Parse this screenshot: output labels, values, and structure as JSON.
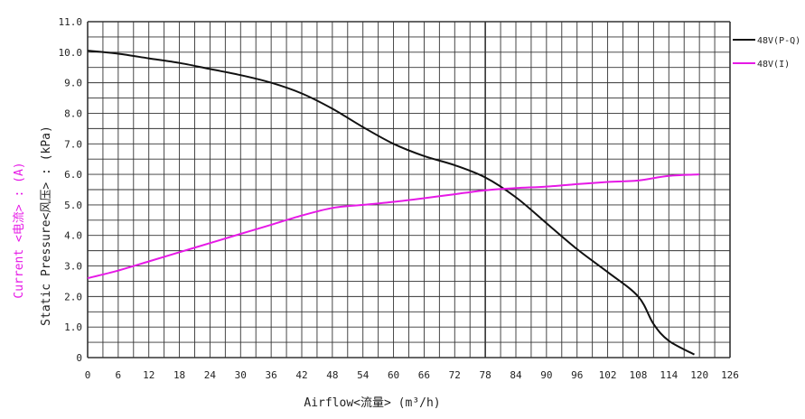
{
  "chart_data": {
    "type": "line",
    "xlabel": "Airflow<流量> (m³/h)",
    "ylabel_pressure": "Static Pressure<风压> : (kPa)",
    "ylabel_current": "Current  <电流> : (A)",
    "xlim": [
      0,
      126
    ],
    "ylim": [
      0,
      11
    ],
    "x_ticks": [
      "0",
      "6",
      "12",
      "18",
      "24",
      "30",
      "36",
      "42",
      "48",
      "54",
      "60",
      "66",
      "72",
      "78",
      "84",
      "90",
      "96",
      "102",
      "108",
      "114",
      "120",
      "126"
    ],
    "y_ticks": [
      "0",
      "1.0",
      "2.0",
      "3.0",
      "4.0",
      "5.0",
      "6.0",
      "7.0",
      "8.0",
      "9.0",
      "10.0",
      "11.0"
    ],
    "grid": true,
    "legend_position": "right",
    "series": [
      {
        "name": "48V(P-Q)",
        "color": "#111111",
        "points": [
          [
            0,
            10.05
          ],
          [
            6,
            9.95
          ],
          [
            12,
            9.8
          ],
          [
            18,
            9.65
          ],
          [
            24,
            9.45
          ],
          [
            30,
            9.25
          ],
          [
            36,
            9.0
          ],
          [
            42,
            8.65
          ],
          [
            48,
            8.15
          ],
          [
            54,
            7.55
          ],
          [
            60,
            7.0
          ],
          [
            66,
            6.6
          ],
          [
            72,
            6.3
          ],
          [
            78,
            5.9
          ],
          [
            84,
            5.25
          ],
          [
            90,
            4.4
          ],
          [
            96,
            3.55
          ],
          [
            102,
            2.8
          ],
          [
            108,
            2.0
          ],
          [
            111,
            1.1
          ],
          [
            114,
            0.55
          ],
          [
            119,
            0.1
          ]
        ]
      },
      {
        "name": "48V(I)",
        "color": "#e619e6",
        "points": [
          [
            0,
            2.6
          ],
          [
            6,
            2.85
          ],
          [
            12,
            3.15
          ],
          [
            18,
            3.45
          ],
          [
            24,
            3.75
          ],
          [
            30,
            4.05
          ],
          [
            36,
            4.35
          ],
          [
            42,
            4.65
          ],
          [
            48,
            4.9
          ],
          [
            54,
            5.0
          ],
          [
            60,
            5.1
          ],
          [
            66,
            5.22
          ],
          [
            72,
            5.35
          ],
          [
            78,
            5.48
          ],
          [
            84,
            5.55
          ],
          [
            90,
            5.6
          ],
          [
            96,
            5.68
          ],
          [
            102,
            5.75
          ],
          [
            108,
            5.8
          ],
          [
            114,
            5.95
          ],
          [
            120,
            6.0
          ]
        ]
      }
    ]
  }
}
